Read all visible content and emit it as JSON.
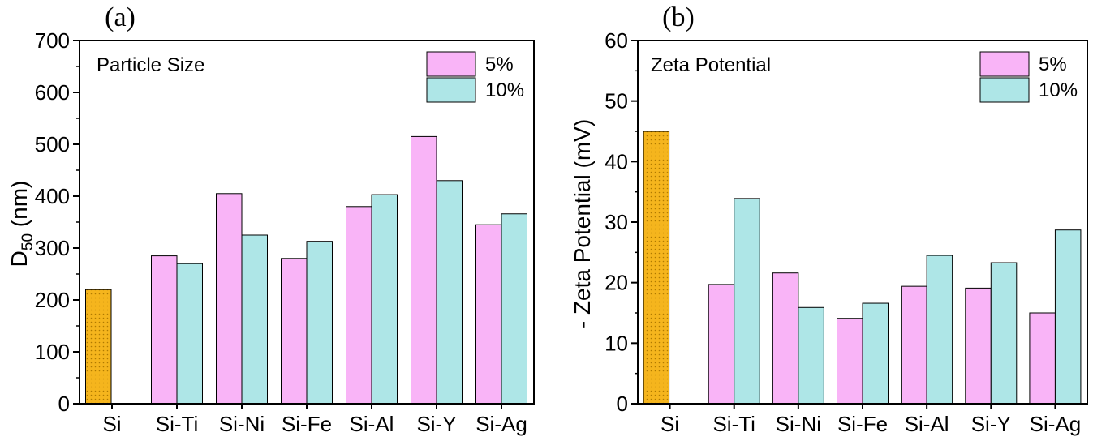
{
  "colors": {
    "si_fill": "#F5B51D",
    "five_fill": "#F9B4F7",
    "ten_fill": "#AEE6E7",
    "axis": "#000000"
  },
  "chart_data": [
    {
      "type": "bar",
      "panel_label": "(a)",
      "title": "Particle Size",
      "xlabel": "",
      "ylabel": "D50 (nm)",
      "ylabel_main": "D",
      "ylabel_sub": "50",
      "ylabel_rest": " (nm)",
      "ylim": [
        0,
        700
      ],
      "yticks": [
        "0",
        "100",
        "200",
        "300",
        "400",
        "500",
        "600",
        "700"
      ],
      "categories": [
        "Si",
        "Si-Ti",
        "Si-Ni",
        "Si-Fe",
        "Si-Al",
        "Si-Y",
        "Si-Ag"
      ],
      "legend_position": "top-right",
      "series": [
        {
          "name": "5%",
          "values": [
            220,
            285,
            405,
            280,
            380,
            515,
            345
          ]
        },
        {
          "name": "10%",
          "values": [
            null,
            270,
            325,
            313,
            403,
            430,
            366
          ]
        }
      ]
    },
    {
      "type": "bar",
      "panel_label": "(b)",
      "title": "Zeta Potential",
      "xlabel": "",
      "ylabel": "- Zeta Potential (mV)",
      "ylim": [
        0,
        60
      ],
      "yticks": [
        "0",
        "10",
        "20",
        "30",
        "40",
        "50",
        "60"
      ],
      "categories": [
        "Si",
        "Si-Ti",
        "Si-Ni",
        "Si-Fe",
        "Si-Al",
        "Si-Y",
        "Si-Ag"
      ],
      "legend_position": "top-right",
      "series": [
        {
          "name": "5%",
          "values": [
            45,
            19.7,
            21.6,
            14.1,
            19.4,
            19.1,
            15
          ]
        },
        {
          "name": "10%",
          "values": [
            null,
            33.9,
            15.9,
            16.6,
            24.5,
            23.3,
            28.7
          ]
        }
      ]
    }
  ]
}
